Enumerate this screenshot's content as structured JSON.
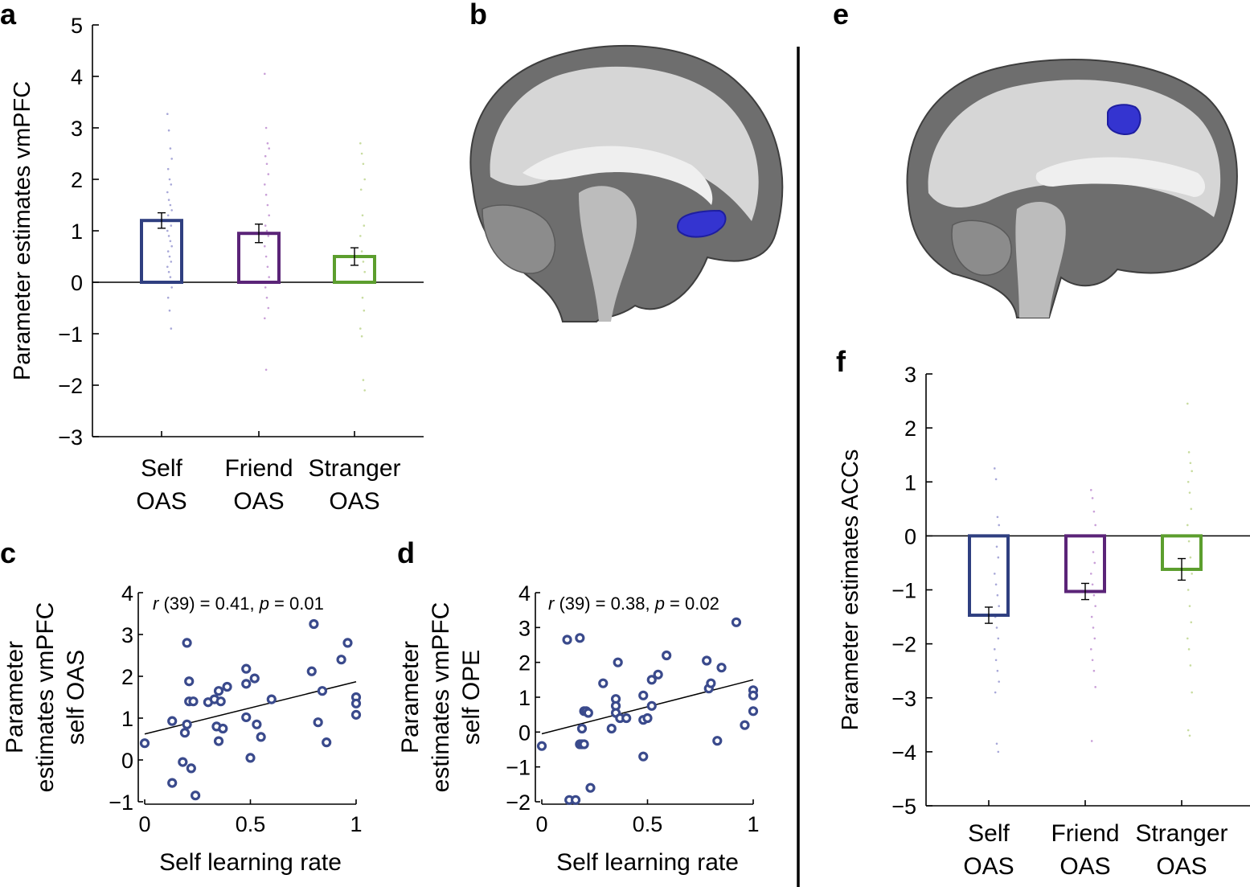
{
  "panels": {
    "a": "a",
    "b": "b",
    "c": "c",
    "d": "d",
    "e": "e",
    "f": "f"
  },
  "colors": {
    "self": "#2f3f80",
    "friend": "#5b2478",
    "stranger": "#5c9e2e",
    "scatter": "#3a4a8c",
    "self_dots": "#a8a8d8",
    "friend_dots": "#c9a0d8",
    "stranger_dots": "#c8dca0",
    "blob": "#3434d0"
  },
  "brain_images": {
    "b": "sagittal brain slice with vmPFC cluster",
    "e": "sagittal brain slice with ACCs cluster"
  },
  "chart_data": [
    {
      "id": "a",
      "type": "bar",
      "categories": [
        [
          "Self",
          "OAS"
        ],
        [
          "Friend",
          "OAS"
        ],
        [
          "Stranger",
          "OAS"
        ]
      ],
      "values": [
        1.2,
        0.95,
        0.5
      ],
      "errors": [
        0.15,
        0.18,
        0.17
      ],
      "ylabel": "Parameter estimates vmPFC",
      "ylim": [
        -3,
        5
      ],
      "yticks": [
        -3,
        -2,
        -1,
        0,
        1,
        2,
        3,
        4,
        5
      ],
      "ytick_labels": [
        "−3",
        "−2",
        "−1",
        "0",
        "1",
        "2",
        "3",
        "4",
        "5"
      ],
      "points": [
        [
          3.27,
          2.95,
          2.6,
          2.4,
          2.2,
          2.0,
          1.9,
          1.75,
          1.6,
          1.5,
          1.4,
          1.3,
          1.2,
          1.1,
          1.0,
          0.9,
          0.8,
          0.7,
          0.6,
          0.5,
          0.4,
          0.3,
          0.2,
          0.1,
          -0.1,
          -0.3,
          -0.55,
          -0.9
        ],
        [
          4.05,
          3.0,
          2.7,
          2.6,
          2.45,
          2.3,
          2.1,
          1.9,
          1.7,
          1.5,
          1.3,
          1.1,
          1.0,
          0.9,
          0.7,
          0.5,
          0.3,
          0.1,
          -0.1,
          -0.3,
          -0.5,
          -0.7,
          -1.7
        ],
        [
          2.7,
          2.5,
          2.3,
          2.0,
          1.8,
          1.3,
          1.1,
          0.9,
          0.6,
          0.4,
          0.2,
          0.0,
          -0.3,
          -0.55,
          -0.9,
          -1.05,
          -1.9,
          -2.1
        ]
      ]
    },
    {
      "id": "c",
      "type": "scatter",
      "xlabel": "Self learning rate",
      "ylabel": [
        "Parameter",
        "estimates vmPFC",
        "self OAS"
      ],
      "xlim": [
        0,
        1
      ],
      "ylim": [
        -1,
        4
      ],
      "xticks": [
        0,
        0.5,
        1
      ],
      "xtick_labels": [
        "0",
        "0.5",
        "1"
      ],
      "yticks": [
        -1,
        0,
        1,
        2,
        3,
        4
      ],
      "ytick_labels": [
        "−1",
        "0",
        "1",
        "2",
        "3",
        "4"
      ],
      "annotation": {
        "r_italic": "r",
        "r_text": " (39) = 0.41, ",
        "p_italic": "p",
        "p_text": " = 0.01"
      },
      "fit": {
        "intercept": 0.62,
        "slope": 1.25
      },
      "points": [
        [
          0.0,
          0.4
        ],
        [
          0.13,
          -0.55
        ],
        [
          0.13,
          0.93
        ],
        [
          0.18,
          -0.05
        ],
        [
          0.19,
          0.65
        ],
        [
          0.2,
          0.85
        ],
        [
          0.21,
          1.4
        ],
        [
          0.21,
          1.88
        ],
        [
          0.2,
          2.8
        ],
        [
          0.22,
          -0.2
        ],
        [
          0.23,
          1.4
        ],
        [
          0.24,
          -0.85
        ],
        [
          0.3,
          1.38
        ],
        [
          0.33,
          1.45
        ],
        [
          0.34,
          0.8
        ],
        [
          0.35,
          1.65
        ],
        [
          0.35,
          0.45
        ],
        [
          0.36,
          1.4
        ],
        [
          0.37,
          0.75
        ],
        [
          0.39,
          1.75
        ],
        [
          0.48,
          2.18
        ],
        [
          0.48,
          1.82
        ],
        [
          0.48,
          1.02
        ],
        [
          0.5,
          0.05
        ],
        [
          0.52,
          1.95
        ],
        [
          0.53,
          0.85
        ],
        [
          0.55,
          0.55
        ],
        [
          0.6,
          1.45
        ],
        [
          0.79,
          2.12
        ],
        [
          0.8,
          3.25
        ],
        [
          0.82,
          0.9
        ],
        [
          0.84,
          1.65
        ],
        [
          0.86,
          0.42
        ],
        [
          0.93,
          2.4
        ],
        [
          0.96,
          2.8
        ],
        [
          1.0,
          1.5
        ],
        [
          1.0,
          1.35
        ],
        [
          1.0,
          1.08
        ]
      ]
    },
    {
      "id": "d",
      "type": "scatter",
      "xlabel": "Self learning rate",
      "ylabel": [
        "Parameter",
        "estimates vmPFC",
        "self OPE"
      ],
      "xlim": [
        0,
        1
      ],
      "ylim": [
        -2,
        4
      ],
      "xticks": [
        0,
        0.5,
        1
      ],
      "xtick_labels": [
        "0",
        "0.5",
        "1"
      ],
      "yticks": [
        -2,
        -1,
        0,
        1,
        2,
        3,
        4
      ],
      "ytick_labels": [
        "−2",
        "−1",
        "0",
        "1",
        "2",
        "3",
        "4"
      ],
      "annotation": {
        "r_italic": "r",
        "r_text": " (39) = 0.38, ",
        "p_italic": "p",
        "p_text": " = 0.02"
      },
      "fit": {
        "intercept": -0.05,
        "slope": 1.55
      },
      "points": [
        [
          0.0,
          -0.4
        ],
        [
          0.12,
          2.65
        ],
        [
          0.13,
          -1.95
        ],
        [
          0.16,
          -1.95
        ],
        [
          0.18,
          2.7
        ],
        [
          0.18,
          -0.35
        ],
        [
          0.19,
          -0.35
        ],
        [
          0.19,
          0.1
        ],
        [
          0.2,
          -0.35
        ],
        [
          0.2,
          0.6
        ],
        [
          0.21,
          0.6
        ],
        [
          0.22,
          0.55
        ],
        [
          0.23,
          -1.6
        ],
        [
          0.29,
          1.4
        ],
        [
          0.33,
          0.1
        ],
        [
          0.35,
          0.95
        ],
        [
          0.35,
          0.75
        ],
        [
          0.35,
          0.55
        ],
        [
          0.36,
          2.0
        ],
        [
          0.37,
          0.4
        ],
        [
          0.4,
          0.4
        ],
        [
          0.48,
          1.05
        ],
        [
          0.48,
          -0.7
        ],
        [
          0.48,
          0.35
        ],
        [
          0.5,
          0.4
        ],
        [
          0.52,
          1.5
        ],
        [
          0.52,
          0.75
        ],
        [
          0.55,
          1.65
        ],
        [
          0.59,
          2.2
        ],
        [
          0.78,
          2.05
        ],
        [
          0.79,
          1.25
        ],
        [
          0.8,
          1.4
        ],
        [
          0.83,
          -0.25
        ],
        [
          0.85,
          1.85
        ],
        [
          0.92,
          3.15
        ],
        [
          0.96,
          0.2
        ],
        [
          1.0,
          1.2
        ],
        [
          1.0,
          1.05
        ],
        [
          1.0,
          0.6
        ]
      ]
    },
    {
      "id": "f",
      "type": "bar",
      "categories": [
        [
          "Self",
          "OAS"
        ],
        [
          "Friend",
          "OAS"
        ],
        [
          "Stranger",
          "OAS"
        ]
      ],
      "values": [
        -1.47,
        -1.03,
        -0.62
      ],
      "errors": [
        0.15,
        0.15,
        0.2
      ],
      "ylabel": "Parameter estimates ACCs",
      "ylim": [
        -5,
        3
      ],
      "yticks": [
        -5,
        -4,
        -3,
        -2,
        -1,
        0,
        1,
        2,
        3
      ],
      "ytick_labels": [
        "−5",
        "−4",
        "−3",
        "−2",
        "−1",
        "0",
        "1",
        "2",
        "3"
      ],
      "points": [
        [
          1.25,
          1.05,
          0.35,
          0.2,
          0.0,
          -0.2,
          -0.4,
          -0.7,
          -0.9,
          -1.1,
          -1.3,
          -1.5,
          -1.7,
          -1.9,
          -2.1,
          -2.3,
          -2.5,
          -2.7,
          -2.9,
          -3.85,
          -4.0
        ],
        [
          0.85,
          0.7,
          0.45,
          0.2,
          0.0,
          -0.3,
          -0.5,
          -0.7,
          -0.9,
          -1.1,
          -1.3,
          -1.5,
          -1.7,
          -1.9,
          -2.1,
          -2.3,
          -2.5,
          -2.8,
          -3.8
        ],
        [
          2.45,
          1.55,
          1.35,
          1.2,
          1.0,
          0.8,
          0.5,
          0.2,
          -0.1,
          -0.4,
          -0.7,
          -1.0,
          -1.3,
          -1.6,
          -1.9,
          -2.1,
          -2.4,
          -2.9,
          -3.6,
          -3.7
        ]
      ]
    }
  ]
}
